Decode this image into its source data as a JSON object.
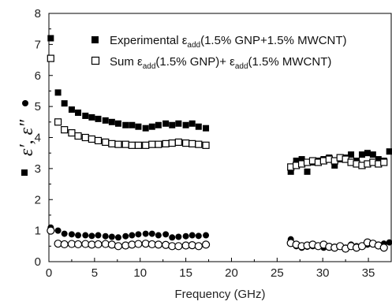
{
  "chart_data": {
    "type": "scatter",
    "xlabel": "Frequency (GHz)",
    "ylabel": "ε′, ε″",
    "xlim": [
      0,
      37.5
    ],
    "ylim": [
      0,
      8
    ],
    "xticks": [
      0,
      5,
      10,
      15,
      20,
      25,
      30,
      35
    ],
    "yticks": [
      0,
      1,
      2,
      3,
      4,
      5,
      6,
      7,
      8
    ],
    "grid": false,
    "legend_position": "top-right",
    "legend": [
      {
        "marker": "filled-square",
        "prefix": "Experimental ε",
        "sub": "add",
        "suffix": "(1.5% GNP+1.5% MWCNT)"
      },
      {
        "marker": "open-square",
        "prefix": "Sum ε",
        "sub": "add",
        "suffix": "(1.5% GNP)+ ε",
        "sub2": "add",
        "suffix2": "(1.5% MWCNT)"
      }
    ],
    "series": [
      {
        "marker": "filled-square",
        "x": [
          0.2,
          1.0,
          1.7,
          2.5,
          3.2,
          4.0,
          4.7,
          5.4,
          6.2,
          6.9,
          7.6,
          8.4,
          9.1,
          9.8,
          10.6,
          11.3,
          12.0,
          12.8,
          13.5,
          14.2,
          15.0,
          15.7,
          16.4,
          17.2,
          26.5,
          27.1,
          27.7,
          28.3,
          28.9,
          29.5,
          30.1,
          30.7,
          31.3,
          31.9,
          32.5,
          33.1,
          33.7,
          34.3,
          34.9,
          35.5,
          36.1,
          36.7,
          37.3
        ],
        "y": [
          7.2,
          5.45,
          5.1,
          4.9,
          4.8,
          4.7,
          4.65,
          4.6,
          4.55,
          4.5,
          4.45,
          4.4,
          4.4,
          4.35,
          4.3,
          4.35,
          4.4,
          4.45,
          4.4,
          4.45,
          4.4,
          4.45,
          4.35,
          4.3,
          2.9,
          3.25,
          3.3,
          2.9,
          3.2,
          3.25,
          3.3,
          3.35,
          3.1,
          3.3,
          3.35,
          3.45,
          3.25,
          3.45,
          3.5,
          3.45,
          3.3,
          3.25,
          3.55
        ]
      },
      {
        "marker": "open-square",
        "x": [
          0.2,
          1.0,
          1.7,
          2.5,
          3.2,
          4.0,
          4.7,
          5.4,
          6.2,
          6.9,
          7.6,
          8.4,
          9.1,
          9.8,
          10.6,
          11.3,
          12.0,
          12.8,
          13.5,
          14.2,
          15.0,
          15.7,
          16.4,
          17.2,
          26.5,
          27.1,
          27.7,
          28.3,
          28.9,
          29.5,
          30.1,
          30.7,
          31.3,
          31.9,
          32.5,
          33.1,
          33.7,
          34.3,
          34.9,
          35.5,
          36.1,
          36.7
        ],
        "y": [
          6.55,
          4.5,
          4.25,
          4.15,
          4.05,
          4.0,
          3.95,
          3.9,
          3.85,
          3.8,
          3.78,
          3.78,
          3.75,
          3.75,
          3.75,
          3.78,
          3.78,
          3.8,
          3.82,
          3.85,
          3.82,
          3.8,
          3.78,
          3.75,
          3.05,
          3.1,
          3.15,
          3.2,
          3.25,
          3.2,
          3.25,
          3.3,
          3.25,
          3.35,
          3.3,
          3.2,
          3.15,
          3.1,
          3.15,
          3.2,
          3.15,
          3.2
        ]
      },
      {
        "marker": "filled-circle",
        "x": [
          0.2,
          1.0,
          1.7,
          2.5,
          3.2,
          4.0,
          4.7,
          5.4,
          6.2,
          6.9,
          7.6,
          8.4,
          9.1,
          9.8,
          10.6,
          11.3,
          12.0,
          12.8,
          13.5,
          14.2,
          15.0,
          15.7,
          16.4,
          17.2,
          26.5,
          27.1,
          27.7,
          28.3,
          28.9,
          29.5,
          30.1,
          30.7,
          31.3,
          31.9,
          32.5,
          33.1,
          33.7,
          34.3,
          34.9,
          35.5,
          36.1,
          36.7,
          37.3
        ],
        "y": [
          1.1,
          1.0,
          0.9,
          0.88,
          0.85,
          0.85,
          0.83,
          0.85,
          0.82,
          0.8,
          0.78,
          0.82,
          0.85,
          0.88,
          0.9,
          0.9,
          0.85,
          0.88,
          0.78,
          0.8,
          0.82,
          0.85,
          0.83,
          0.85,
          0.72,
          0.5,
          0.45,
          0.48,
          0.5,
          0.52,
          0.45,
          0.5,
          0.48,
          0.5,
          0.45,
          0.55,
          0.5,
          0.52,
          0.55,
          0.6,
          0.55,
          0.58,
          0.62
        ]
      },
      {
        "marker": "open-circle",
        "x": [
          0.2,
          1.0,
          1.7,
          2.5,
          3.2,
          4.0,
          4.7,
          5.4,
          6.2,
          6.9,
          7.6,
          8.4,
          9.1,
          9.8,
          10.6,
          11.3,
          12.0,
          12.8,
          13.5,
          14.2,
          15.0,
          15.7,
          16.4,
          17.2,
          26.5,
          27.1,
          27.7,
          28.3,
          28.9,
          29.5,
          30.1,
          30.7,
          31.3,
          31.9,
          32.5,
          33.1,
          33.7,
          34.3,
          34.9,
          35.5,
          36.1,
          36.7
        ],
        "y": [
          1.0,
          0.58,
          0.56,
          0.57,
          0.56,
          0.57,
          0.55,
          0.56,
          0.57,
          0.55,
          0.5,
          0.52,
          0.55,
          0.57,
          0.58,
          0.56,
          0.55,
          0.54,
          0.5,
          0.5,
          0.52,
          0.53,
          0.5,
          0.55,
          0.6,
          0.55,
          0.5,
          0.52,
          0.55,
          0.5,
          0.55,
          0.48,
          0.45,
          0.5,
          0.42,
          0.5,
          0.45,
          0.5,
          0.62,
          0.58,
          0.52,
          0.45
        ]
      }
    ]
  }
}
